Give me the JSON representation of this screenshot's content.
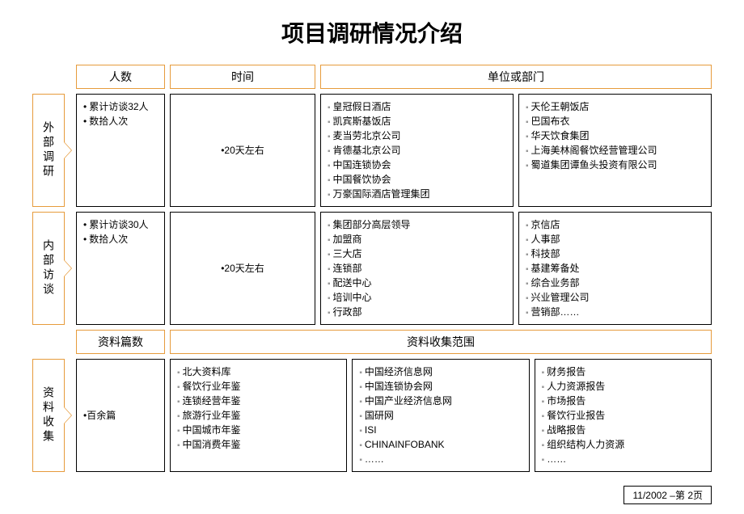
{
  "title": "项目调研情况介绍",
  "headers1": {
    "c1": "人数",
    "c2": "时间",
    "c3": "单位或部门"
  },
  "headers2": {
    "c1": "资料篇数",
    "c3": "资料收集范围"
  },
  "rows": [
    {
      "label": "外部调研",
      "people": [
        "累计访谈32人",
        "数拾人次"
      ],
      "time": "20天左右",
      "units_left": [
        "皇冠假日酒店",
        "凯宾斯基饭店",
        "麦当劳北京公司",
        "肯德基北京公司",
        "中国连锁协会",
        "中国餐饮协会",
        "万豪国际酒店管理集团"
      ],
      "units_right": [
        "天伦王朝饭店",
        "巴国布衣",
        "华天饮食集团",
        "上海美林阁餐饮经营管理公司",
        "蜀道集团谭鱼头投资有限公司"
      ]
    },
    {
      "label": "内部访谈",
      "people": [
        "累计访谈30人",
        "数拾人次"
      ],
      "time": "20天左右",
      "units_left": [
        "集团部分高层领导",
        "加盟商",
        "三大店",
        "连锁部",
        "配送中心",
        "培训中心",
        "行政部"
      ],
      "units_right": [
        "京信店",
        "人事部",
        "科技部",
        "基建筹备处",
        "综合业务部",
        "兴业管理公司",
        "营销部……"
      ]
    }
  ],
  "row3": {
    "label": "资料收集",
    "count": "百余篇",
    "col1": [
      "北大资料库",
      "餐饮行业年鉴",
      "连锁经营年鉴",
      "旅游行业年鉴",
      "中国城市年鉴",
      "中国消费年鉴"
    ],
    "col2": [
      "中国经济信息网",
      "中国连锁协会网",
      "中国产业经济信息网",
      "国研网",
      "ISI",
      "CHINAINFOBANK",
      "……"
    ],
    "col3": [
      "财务报告",
      "人力资源报告",
      "市场报告",
      "餐饮行业报告",
      "战略报告",
      "组织结构人力资源",
      "……"
    ]
  },
  "footer": "11/2002  –第 2页",
  "colors": {
    "orange": "#e69b3c",
    "black": "#000000",
    "bg": "#ffffff",
    "bullet": "#999999"
  },
  "fonts": {
    "title_size": 28,
    "body_size": 12,
    "header_size": 14
  }
}
